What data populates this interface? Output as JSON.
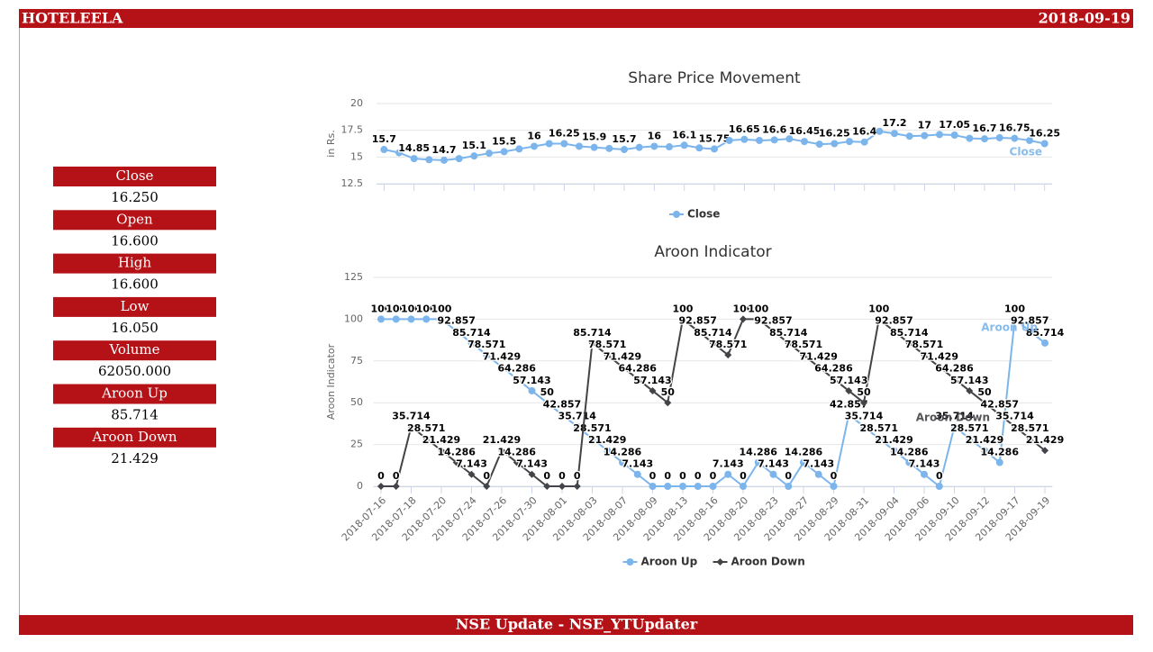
{
  "header": {
    "title": "HOTELEELA",
    "date": "2018-09-19"
  },
  "stats": [
    {
      "label": "Close",
      "value": "16.250"
    },
    {
      "label": "Open",
      "value": "16.600"
    },
    {
      "label": "High",
      "value": "16.600"
    },
    {
      "label": "Low",
      "value": "16.050"
    },
    {
      "label": "Volume",
      "value": "62050.000"
    },
    {
      "label": "Aroon Up",
      "value": "85.714"
    },
    {
      "label": "Aroon Down",
      "value": "21.429"
    }
  ],
  "footer": "NSE Update - NSE_YTUpdater",
  "chart_data": [
    {
      "type": "line",
      "title": "Share Price Movement",
      "y_label": "in Rs.",
      "ylim": [
        12.5,
        20
      ],
      "yticks": [
        12.5,
        15,
        17.5,
        20
      ],
      "grid": true,
      "series": [
        {
          "name": "Close",
          "color": "#7cb5ec",
          "values": [
            15.7,
            15.4,
            14.85,
            14.75,
            14.7,
            14.85,
            15.1,
            15.35,
            15.5,
            15.75,
            16,
            16.25,
            16.25,
            16,
            15.9,
            15.8,
            15.7,
            15.9,
            16,
            15.95,
            16.1,
            15.85,
            15.75,
            16.55,
            16.65,
            16.55,
            16.6,
            16.7,
            16.45,
            16.2,
            16.25,
            16.45,
            16.4,
            17.4,
            17.2,
            16.95,
            17,
            17.1,
            17.05,
            16.75,
            16.7,
            16.8,
            16.75,
            16.55,
            16.25
          ]
        }
      ]
    },
    {
      "type": "line",
      "title": "Aroon Indicator",
      "y_label": "Aroon Indicator",
      "ylim": [
        0,
        125
      ],
      "yticks": [
        0,
        25,
        50,
        75,
        100,
        125
      ],
      "grid": true,
      "categories": [
        "2018-07-16",
        null,
        "2018-07-18",
        null,
        "2018-07-20",
        null,
        "2018-07-24",
        null,
        "2018-07-26",
        null,
        "2018-07-30",
        null,
        "2018-08-01",
        null,
        "2018-08-03",
        null,
        "2018-08-07",
        null,
        "2018-08-09",
        null,
        "2018-08-13",
        null,
        "2018-08-16",
        null,
        "2018-08-20",
        null,
        "2018-08-23",
        null,
        "2018-08-27",
        null,
        "2018-08-29",
        null,
        "2018-08-31",
        null,
        "2018-09-04",
        null,
        "2018-09-06",
        null,
        "2018-09-10",
        null,
        "2018-09-12",
        null,
        "2018-09-17",
        null,
        "2018-09-19"
      ],
      "series": [
        {
          "name": "Aroon Up",
          "color": "#7cb5ec",
          "values": [
            100,
            100,
            100,
            100,
            100,
            92.857,
            85.714,
            78.571,
            71.429,
            64.286,
            57.143,
            50,
            42.857,
            35.714,
            28.571,
            21.429,
            14.286,
            7.143,
            0,
            0,
            0,
            0,
            0,
            7.143,
            0,
            14.286,
            7.143,
            0,
            14.286,
            7.143,
            0,
            42.857,
            35.714,
            28.571,
            21.429,
            14.286,
            7.143,
            0,
            35.714,
            28.571,
            21.429,
            14.286,
            100,
            92.857,
            85.714
          ]
        },
        {
          "name": "Aroon Down",
          "color": "#434348",
          "values": [
            0,
            0,
            35.714,
            28.571,
            21.429,
            14.286,
            7.143,
            0,
            21.429,
            14.286,
            7.143,
            0,
            0,
            0,
            85.714,
            78.571,
            71.429,
            64.286,
            57.143,
            50,
            100,
            92.857,
            85.714,
            78.571,
            100,
            100,
            92.857,
            85.714,
            78.571,
            71.429,
            64.286,
            57.143,
            50,
            100,
            92.857,
            85.714,
            78.571,
            71.429,
            64.286,
            57.143,
            50,
            42.857,
            35.714,
            28.571,
            21.429
          ]
        }
      ]
    }
  ]
}
